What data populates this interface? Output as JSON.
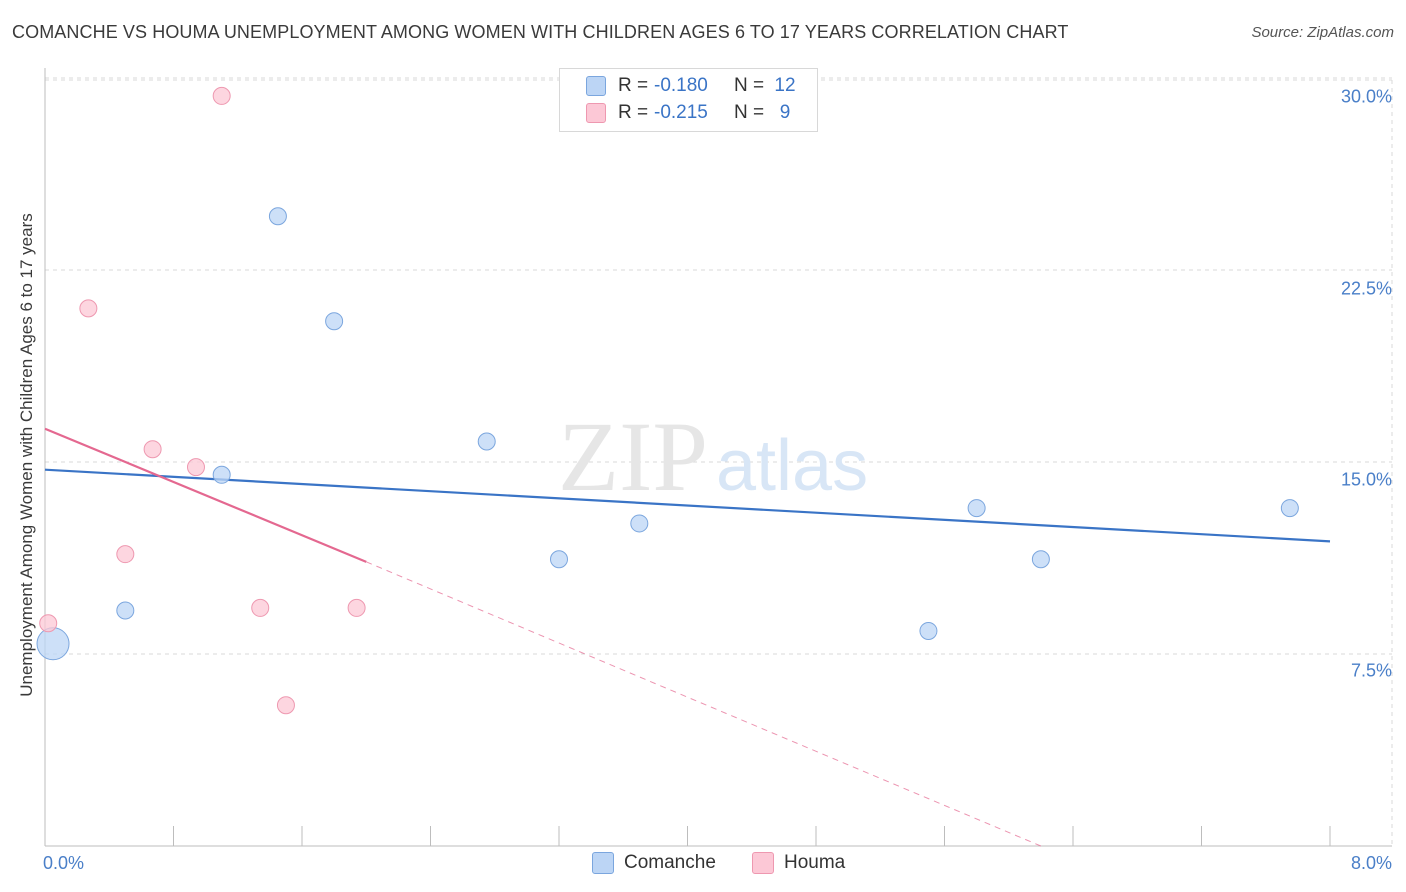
{
  "title": "COMANCHE VS HOUMA UNEMPLOYMENT AMONG WOMEN WITH CHILDREN AGES 6 TO 17 YEARS CORRELATION CHART",
  "source": "Source: ZipAtlas.com",
  "watermark": {
    "zip": "ZIP",
    "atlas": "atlas"
  },
  "legend": {
    "rows": [
      {
        "r_label": "R =",
        "r_value": "-0.180",
        "n_label": "N =",
        "n_value": "12"
      },
      {
        "r_label": "R =",
        "r_value": "-0.215",
        "n_label": "N =",
        "n_value": "9"
      }
    ]
  },
  "colors": {
    "comanche_fill": "#bcd5f5",
    "comanche_stroke": "#7ba6de",
    "comanche_line": "#3a74c6",
    "houma_fill": "#fcc8d6",
    "houma_stroke": "#ee98b0",
    "houma_line": "#e46890",
    "grid": "#d9d9d9",
    "tick_text": "#4a7fc8"
  },
  "chart_data": {
    "type": "scatter",
    "title": "COMANCHE VS HOUMA UNEMPLOYMENT AMONG WOMEN WITH CHILDREN AGES 6 TO 17 YEARS CORRELATION CHART",
    "xlabel": "",
    "ylabel": "Unemployment Among Women with Children Ages 6 to 17 years",
    "xlim": [
      0,
      8
    ],
    "ylim": [
      0,
      31
    ],
    "x_tick_labels": [
      "0.0%",
      "8.0%"
    ],
    "y_ticks": [
      7.5,
      15.0,
      22.5,
      30.0
    ],
    "y_tick_labels": [
      "7.5%",
      "15.0%",
      "22.5%",
      "30.0%"
    ],
    "grid": true,
    "legend_position": "top-center",
    "series": [
      {
        "name": "Comanche",
        "points": [
          {
            "x": 0.05,
            "y": 7.9,
            "size": "large"
          },
          {
            "x": 0.5,
            "y": 9.2
          },
          {
            "x": 1.1,
            "y": 14.5
          },
          {
            "x": 1.45,
            "y": 24.6
          },
          {
            "x": 1.8,
            "y": 20.5
          },
          {
            "x": 2.75,
            "y": 15.8
          },
          {
            "x": 3.2,
            "y": 11.2
          },
          {
            "x": 3.7,
            "y": 12.6
          },
          {
            "x": 5.5,
            "y": 8.4
          },
          {
            "x": 5.8,
            "y": 13.2
          },
          {
            "x": 6.2,
            "y": 11.2
          },
          {
            "x": 7.75,
            "y": 13.2
          }
        ],
        "trend": {
          "x0": 0.0,
          "y0": 14.7,
          "x1": 8.0,
          "y1": 11.9
        }
      },
      {
        "name": "Houma",
        "points": [
          {
            "x": 0.02,
            "y": 8.7
          },
          {
            "x": 0.27,
            "y": 21.0
          },
          {
            "x": 0.5,
            "y": 11.4
          },
          {
            "x": 0.67,
            "y": 15.5
          },
          {
            "x": 0.94,
            "y": 14.8
          },
          {
            "x": 1.1,
            "y": 29.3
          },
          {
            "x": 1.34,
            "y": 9.3
          },
          {
            "x": 1.5,
            "y": 5.5
          },
          {
            "x": 1.94,
            "y": 9.3
          }
        ],
        "trend": {
          "x0": 0.0,
          "y0": 16.3,
          "x1": 2.0,
          "y1": 11.1
        },
        "trend_dashed": {
          "x0": 2.0,
          "y0": 11.1,
          "x1": 6.2,
          "y1": 0.0
        }
      }
    ]
  }
}
